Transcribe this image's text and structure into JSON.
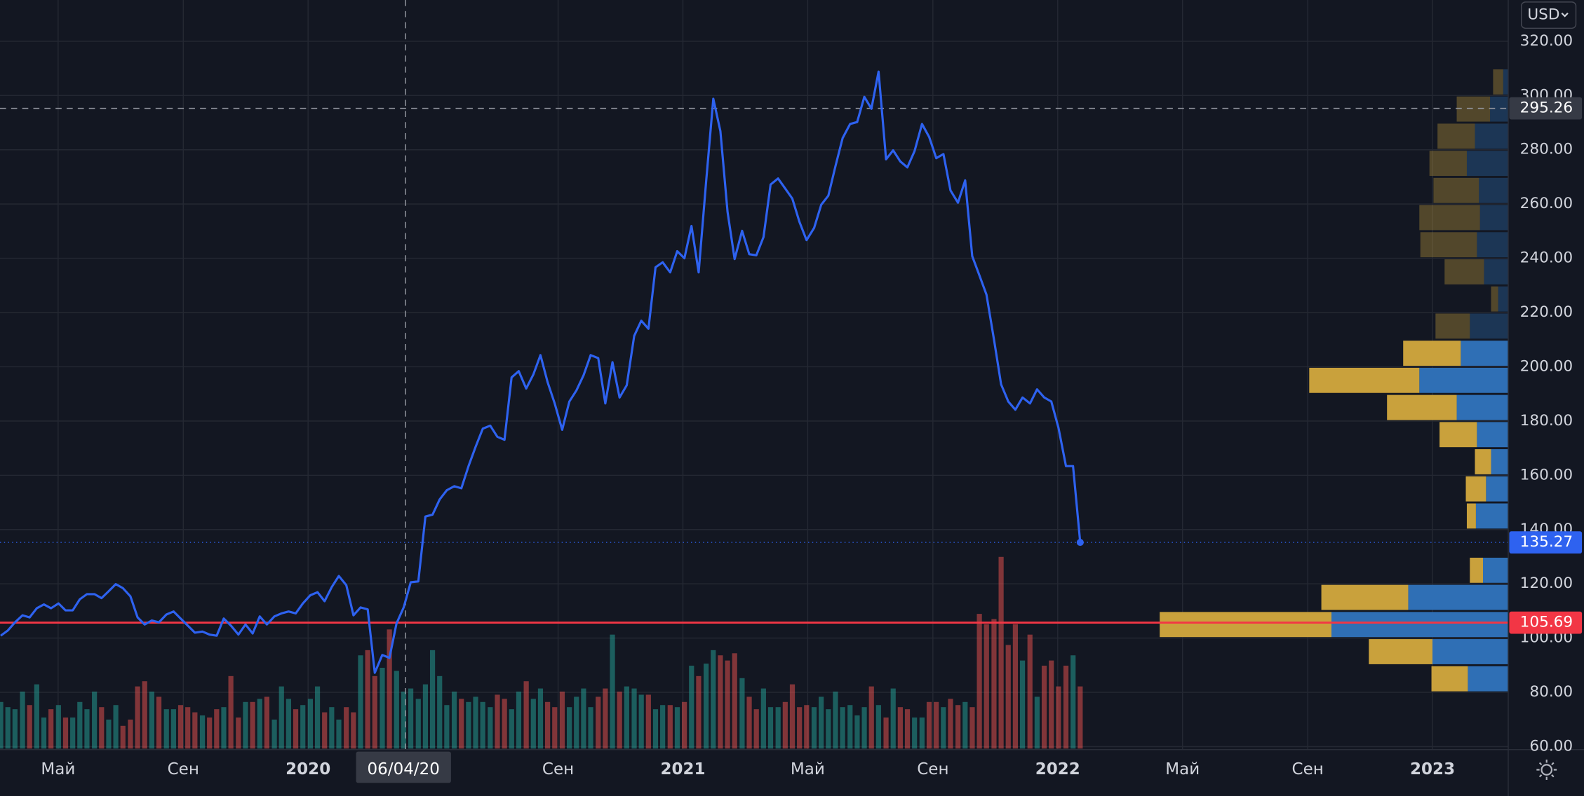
{
  "chart_data": {
    "type": "line",
    "currency": "USD",
    "color": "#2e62f0",
    "xlim": [
      2019.178,
      2023.202
    ],
    "ylim": [
      58.9,
      335.2
    ],
    "grid": true,
    "yticks": [
      {
        "value": 60,
        "label": "60.00"
      },
      {
        "value": 80,
        "label": "80.00"
      },
      {
        "value": 100,
        "label": "100.00"
      },
      {
        "value": 120,
        "label": "120.00"
      },
      {
        "value": 140,
        "label": "140.00"
      },
      {
        "value": 160,
        "label": "160.00"
      },
      {
        "value": 180,
        "label": "180.00"
      },
      {
        "value": 200,
        "label": "200.00"
      },
      {
        "value": 220,
        "label": "220.00"
      },
      {
        "value": 240,
        "label": "240.00"
      },
      {
        "value": 260,
        "label": "260.00"
      },
      {
        "value": 280,
        "label": "280.00"
      },
      {
        "value": 300,
        "label": "300.00"
      },
      {
        "value": 320,
        "label": "320.00"
      }
    ],
    "xticks": [
      {
        "value": 2019.333,
        "label": "Май"
      },
      {
        "value": 2019.667,
        "label": "Сен"
      },
      2020,
      {
        "value": 2020.667,
        "label": "Сен"
      },
      2021,
      {
        "value": 2021.333,
        "label": "Май"
      },
      {
        "value": 2021.667,
        "label": "Сен"
      },
      2022,
      {
        "value": 2022.333,
        "label": "Май"
      },
      {
        "value": 2022.667,
        "label": "Сен"
      },
      2023
    ],
    "x": [
      2019.18,
      2019.199,
      2019.218,
      2019.238,
      2019.257,
      2019.276,
      2019.295,
      2019.314,
      2019.334,
      2019.353,
      2019.372,
      2019.391,
      2019.41,
      2019.43,
      2019.449,
      2019.468,
      2019.487,
      2019.506,
      2019.526,
      2019.545,
      2019.564,
      2019.583,
      2019.602,
      2019.622,
      2019.641,
      2019.66,
      2019.679,
      2019.698,
      2019.718,
      2019.737,
      2019.756,
      2019.775,
      2019.794,
      2019.814,
      2019.833,
      2019.852,
      2019.871,
      2019.89,
      2019.91,
      2019.929,
      2019.948,
      2019.967,
      2019.986,
      2020.006,
      2020.025,
      2020.044,
      2020.063,
      2020.082,
      2020.102,
      2020.121,
      2020.14,
      2020.159,
      2020.178,
      2020.198,
      2020.217,
      2020.236,
      2020.255,
      2020.274,
      2020.294,
      2020.313,
      2020.332,
      2020.351,
      2020.37,
      2020.39,
      2020.409,
      2020.428,
      2020.447,
      2020.466,
      2020.486,
      2020.505,
      2020.524,
      2020.543,
      2020.562,
      2020.582,
      2020.601,
      2020.62,
      2020.639,
      2020.658,
      2020.678,
      2020.697,
      2020.716,
      2020.735,
      2020.754,
      2020.774,
      2020.793,
      2020.812,
      2020.831,
      2020.85,
      2020.87,
      2020.889,
      2020.908,
      2020.927,
      2020.946,
      2020.966,
      2020.985,
      2021.004,
      2021.023,
      2021.042,
      2021.062,
      2021.081,
      2021.1,
      2021.119,
      2021.138,
      2021.158,
      2021.177,
      2021.196,
      2021.215,
      2021.234,
      2021.254,
      2021.273,
      2021.292,
      2021.311,
      2021.33,
      2021.35,
      2021.369,
      2021.388,
      2021.407,
      2021.426,
      2021.446,
      2021.465,
      2021.484,
      2021.503,
      2021.522,
      2021.542,
      2021.561,
      2021.58,
      2021.599,
      2021.618,
      2021.638,
      2021.657,
      2021.676,
      2021.695,
      2021.714,
      2021.734,
      2021.753,
      2021.772,
      2021.791,
      2021.81,
      2021.83,
      2021.849,
      2021.868,
      2021.887,
      2021.906,
      2021.926,
      2021.945,
      2021.964,
      2021.983,
      2022.002,
      2022.022,
      2022.041,
      2022.06
    ],
    "values": [
      100.9,
      102.8,
      105.8,
      108.4,
      107.6,
      111.0,
      112.4,
      111.0,
      112.8,
      110.2,
      110.2,
      114.3,
      116.2,
      116.2,
      114.7,
      117.3,
      119.9,
      118.4,
      115.4,
      107.6,
      105.0,
      106.5,
      105.8,
      108.7,
      109.8,
      107.2,
      104.6,
      102.0,
      102.4,
      101.3,
      100.9,
      107.2,
      104.6,
      101.3,
      105.0,
      101.7,
      108.0,
      105.0,
      108.0,
      109.1,
      109.8,
      109.1,
      112.8,
      115.8,
      116.9,
      113.6,
      118.8,
      122.9,
      119.5,
      108.4,
      111.3,
      110.6,
      87.2,
      93.8,
      92.7,
      105.4,
      111.3,
      120.6,
      120.9,
      144.8,
      145.5,
      151.1,
      154.5,
      156.0,
      155.2,
      163.4,
      170.5,
      177.2,
      178.3,
      174.2,
      173.1,
      196.1,
      198.4,
      192.0,
      197.2,
      204.3,
      194.3,
      186.5,
      176.8,
      187.2,
      191.3,
      196.9,
      204.3,
      203.2,
      186.5,
      201.7,
      188.7,
      193.2,
      211.4,
      217.0,
      214.0,
      236.7,
      238.5,
      234.8,
      242.6,
      240.0,
      251.9,
      234.8,
      268.3,
      298.8,
      286.9,
      257.1,
      239.7,
      250.1,
      241.5,
      241.1,
      247.8,
      267.2,
      269.4,
      265.7,
      262.0,
      253.4,
      246.7,
      251.2,
      259.7,
      263.1,
      273.9,
      284.3,
      289.5,
      290.2,
      299.5,
      295.1,
      308.8,
      276.5,
      279.8,
      275.7,
      273.5,
      279.5,
      289.5,
      284.7,
      276.9,
      278.4,
      265.0,
      260.5,
      268.7,
      240.8,
      233.7,
      226.6,
      209.9,
      193.5,
      187.2,
      184.2,
      188.7,
      186.5,
      191.7,
      188.7,
      187.2,
      177.5,
      163.4,
      163.4,
      135.27
    ],
    "volume": {
      "up_color": "#26a69a",
      "down_color": "#ef5350",
      "values": [
        45,
        40,
        38,
        55,
        42,
        62,
        30,
        38,
        42,
        30,
        30,
        45,
        38,
        55,
        40,
        28,
        42,
        22,
        28,
        60,
        65,
        55,
        50,
        38,
        38,
        42,
        40,
        35,
        32,
        30,
        38,
        40,
        70,
        30,
        45,
        45,
        48,
        50,
        28,
        60,
        48,
        38,
        42,
        48,
        60,
        35,
        40,
        28,
        40,
        35,
        90,
        95,
        70,
        78,
        115,
        75,
        55,
        58,
        48,
        62,
        95,
        70,
        42,
        55,
        48,
        45,
        50,
        45,
        40,
        52,
        48,
        38,
        55,
        65,
        48,
        58,
        45,
        40,
        55,
        40,
        50,
        58,
        40,
        50,
        58,
        110,
        55,
        60,
        58,
        52,
        52,
        38,
        42,
        42,
        40,
        45,
        80,
        70,
        82,
        95,
        90,
        85,
        92,
        68,
        50,
        38,
        58,
        40,
        40,
        45,
        62,
        40,
        42,
        40,
        50,
        38,
        55,
        40,
        42,
        32,
        40,
        60,
        42,
        30,
        58,
        40,
        38,
        30,
        30,
        45,
        45,
        40,
        48,
        42,
        45,
        40,
        130,
        120,
        125,
        185,
        100,
        120,
        85,
        110,
        50,
        80,
        85,
        60,
        80,
        90,
        60
      ]
    },
    "volume_profile": {
      "up_color": "#2f6fb5",
      "down_color": "#c9a13c",
      "value_area": [
        80,
        210
      ],
      "rows": [
        {
          "low": 80,
          "high": 90,
          "up": 40,
          "down": 36
        },
        {
          "low": 90,
          "high": 100,
          "up": 75,
          "down": 63
        },
        {
          "low": 100,
          "high": 110,
          "up": 175,
          "down": 170
        },
        {
          "low": 110,
          "high": 120,
          "up": 99,
          "down": 86
        },
        {
          "low": 120,
          "high": 130,
          "up": 25,
          "down": 13
        },
        {
          "low": 140,
          "high": 150,
          "up": 32,
          "down": 9
        },
        {
          "low": 150,
          "high": 160,
          "up": 22,
          "down": 20
        },
        {
          "low": 160,
          "high": 170,
          "up": 17,
          "down": 16
        },
        {
          "low": 170,
          "high": 180,
          "up": 31,
          "down": 37
        },
        {
          "low": 180,
          "high": 190,
          "up": 51,
          "down": 69
        },
        {
          "low": 190,
          "high": 200,
          "up": 88,
          "down": 109
        },
        {
          "low": 200,
          "high": 210,
          "up": 47,
          "down": 57
        },
        {
          "low": 210,
          "high": 220,
          "up": 38,
          "down": 34
        },
        {
          "low": 220,
          "high": 230,
          "up": 10,
          "down": 7
        },
        {
          "low": 230,
          "high": 240,
          "up": 24,
          "down": 39
        },
        {
          "low": 240,
          "high": 250,
          "up": 31,
          "down": 56
        },
        {
          "low": 250,
          "high": 260,
          "up": 28,
          "down": 60
        },
        {
          "low": 260,
          "high": 270,
          "up": 29,
          "down": 45
        },
        {
          "low": 270,
          "high": 280,
          "up": 41,
          "down": 37
        },
        {
          "low": 280,
          "high": 290,
          "up": 33,
          "down": 37
        },
        {
          "low": 290,
          "high": 300,
          "up": 18,
          "down": 33
        },
        {
          "low": 300,
          "high": 310,
          "up": 5,
          "down": 10
        }
      ]
    },
    "horizontal_line": {
      "value": 105.69,
      "color": "#f23645"
    },
    "crosshair": {
      "x": 2020.26,
      "x_label": "06/04/20",
      "y": 295.26
    }
  }
}
